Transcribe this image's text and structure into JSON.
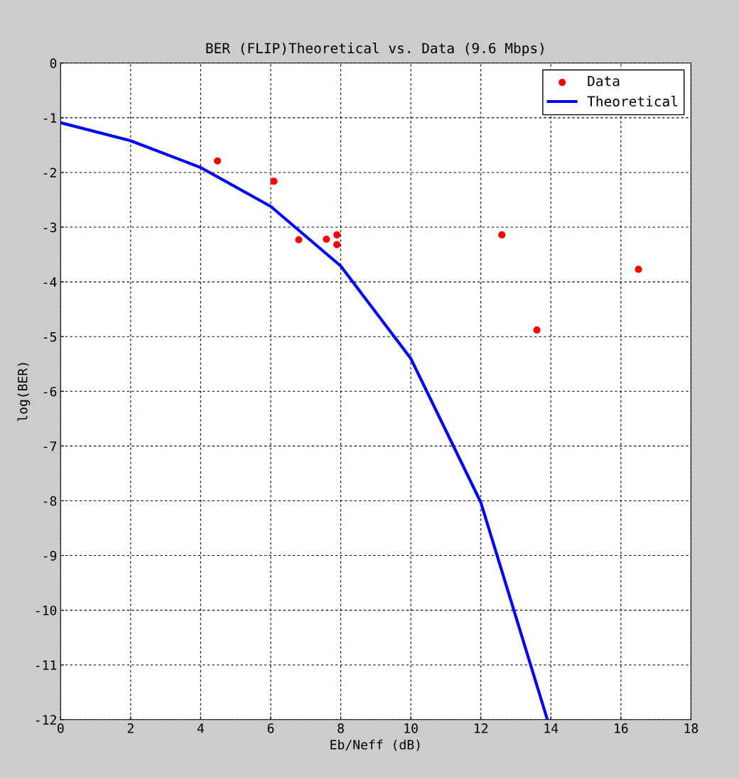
{
  "chart_data": {
    "type": "line",
    "title": "BER (FLIP)Theoretical vs. Data (9.6 Mbps)",
    "xlabel": "Eb/Neff (dB)",
    "ylabel": "log(BER)",
    "series": [
      {
        "name": "Data",
        "type": "scatter",
        "color": "#ff0000",
        "marker": "circle",
        "x": [
          4.48,
          6.09,
          6.8,
          7.59,
          7.89,
          7.89,
          12.6,
          13.6,
          16.5
        ],
        "values": [
          -1.79,
          -2.16,
          -3.23,
          -3.22,
          -3.14,
          -3.32,
          -3.14,
          -4.88,
          -3.77
        ]
      },
      {
        "name": "Theoretical",
        "color": "#0000ff",
        "line_style": "solid",
        "x": [
          0,
          2,
          4,
          6,
          8,
          10,
          12,
          13.9
        ],
        "values": [
          -1.09,
          -1.42,
          -1.91,
          -2.62,
          -3.71,
          -5.4,
          -8.03,
          -12
        ]
      }
    ],
    "xlim": [
      0,
      18
    ],
    "xticks": [
      0,
      2,
      4,
      6,
      8,
      10,
      12,
      14,
      16,
      18
    ],
    "ylim": [
      -12,
      0
    ],
    "yticks": [
      -12,
      -11,
      -10,
      -9,
      -8,
      -7,
      -6,
      -5,
      -4,
      -3,
      -2,
      -1,
      0
    ],
    "grid": true,
    "legend": "top right"
  }
}
